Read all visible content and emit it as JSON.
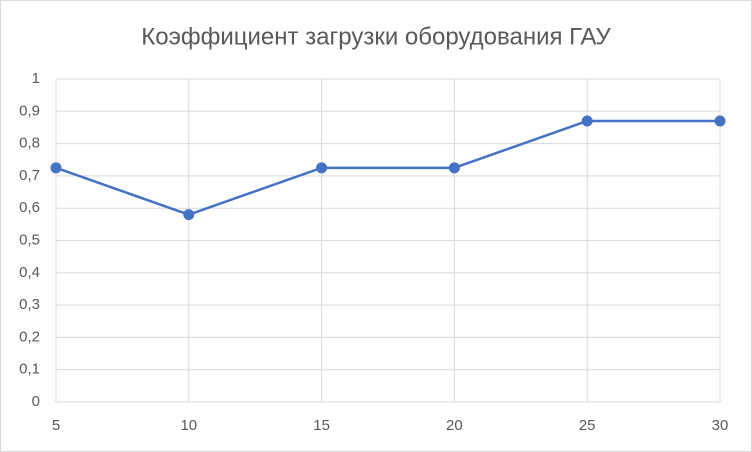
{
  "chart_data": {
    "type": "line",
    "title": "Коэффициент загрузки оборудования ГАУ",
    "x": [
      5,
      10,
      15,
      20,
      25,
      30
    ],
    "series": [
      {
        "name": "Коэффициент загрузки",
        "color": "#4472c4",
        "values": [
          0.725,
          0.58,
          0.725,
          0.725,
          0.87,
          0.87
        ]
      }
    ],
    "xlim": [
      5,
      30
    ],
    "xticks": [
      5,
      10,
      15,
      20,
      25,
      30
    ],
    "ylim": [
      0,
      1
    ],
    "yticks": [
      0,
      {
        "value": 0.1,
        "label": "0,1"
      },
      {
        "value": 0.2,
        "label": "0,2"
      },
      {
        "value": 0.3,
        "label": "0,3"
      },
      {
        "value": 0.4,
        "label": "0,4"
      },
      {
        "value": 0.5,
        "label": "0,5"
      },
      {
        "value": 0.6,
        "label": "0,6"
      },
      {
        "value": 0.7,
        "label": "0,7"
      },
      {
        "value": 0.8,
        "label": "0,8"
      },
      {
        "value": 0.9,
        "label": "0,9"
      },
      1
    ],
    "grid": true
  }
}
